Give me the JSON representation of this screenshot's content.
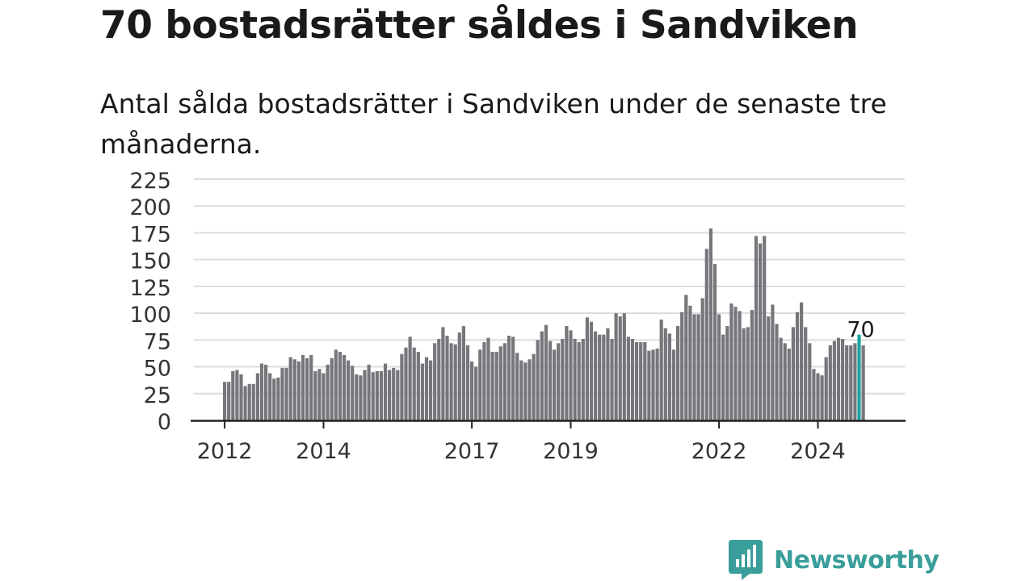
{
  "title": "70 bostadsrätter såldes i Sandviken",
  "subtitle": "Antal sålda bostadsrätter i Sandviken under de senaste tre månaderna.",
  "brand": {
    "name": "Newsworthy",
    "color": "#3a9e9b",
    "icon": "newsworthy-logo-icon"
  },
  "colors": {
    "bar": "#77767b",
    "highlight": "#1ba49e",
    "grid": "#dcdcdc",
    "axis": "#222222"
  },
  "chart_data": {
    "type": "bar",
    "ylim": [
      0,
      225
    ],
    "yticks": [
      0,
      25,
      50,
      75,
      100,
      125,
      150,
      175,
      200,
      225
    ],
    "x_tick_labels": [
      "2012",
      "2014",
      "2017",
      "2019",
      "2022",
      "2024"
    ],
    "x_tick_indices": [
      0,
      24,
      60,
      84,
      120,
      144
    ],
    "values": [
      36,
      36,
      46,
      47,
      43,
      32,
      34,
      34,
      44,
      53,
      52,
      44,
      39,
      40,
      49,
      49,
      59,
      57,
      55,
      61,
      58,
      61,
      46,
      48,
      44,
      52,
      58,
      66,
      64,
      61,
      56,
      51,
      43,
      42,
      47,
      52,
      45,
      46,
      46,
      53,
      47,
      49,
      47,
      62,
      68,
      78,
      68,
      64,
      53,
      59,
      56,
      72,
      76,
      87,
      79,
      72,
      71,
      82,
      88,
      70,
      55,
      50,
      66,
      73,
      77,
      64,
      64,
      69,
      72,
      79,
      78,
      63,
      56,
      54,
      57,
      62,
      75,
      83,
      89,
      74,
      66,
      72,
      76,
      88,
      84,
      76,
      73,
      76,
      96,
      92,
      83,
      80,
      80,
      86,
      76,
      100,
      97,
      100,
      78,
      76,
      73,
      73,
      73,
      65,
      66,
      67,
      94,
      86,
      81,
      66,
      88,
      101,
      117,
      107,
      99,
      99,
      114,
      160,
      179,
      146,
      99,
      80,
      88,
      109,
      106,
      102,
      86,
      87,
      103,
      172,
      165,
      172,
      97,
      108,
      90,
      77,
      72,
      67,
      87,
      101,
      110,
      87,
      72,
      48,
      44,
      42,
      59,
      70,
      74,
      77,
      76,
      70,
      70,
      72,
      80,
      70
    ],
    "highlight_index": 154,
    "highlight_label": "70"
  }
}
